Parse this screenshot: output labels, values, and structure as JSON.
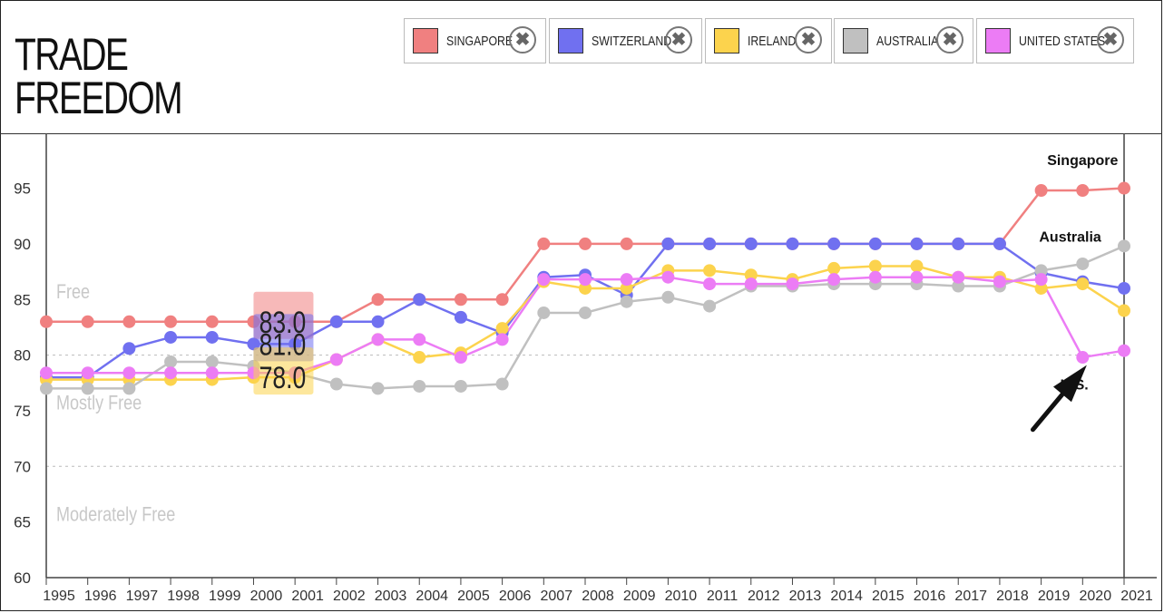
{
  "title_lines": [
    "TRADE",
    "FREEDOM"
  ],
  "legend": [
    {
      "label": "SINGAPORE",
      "color": "#f08080",
      "close_icon": "close-circle-icon"
    },
    {
      "label": "SWITZERLAND",
      "color": "#7070f0",
      "close_icon": "close-circle-icon"
    },
    {
      "label": "IRELAND",
      "color": "#fcd34d",
      "close_icon": "close-circle-icon"
    },
    {
      "label": "AUSTRALIA",
      "color": "#c0c0c0",
      "close_icon": "close-circle-icon"
    },
    {
      "label": "UNITED STATES",
      "color": "#ec7cf5",
      "close_icon": "close-circle-icon"
    }
  ],
  "close_glyph": "✖",
  "chart_data": {
    "type": "line",
    "x": [
      1995,
      1996,
      1997,
      1998,
      1999,
      2000,
      2001,
      2002,
      2003,
      2004,
      2005,
      2006,
      2007,
      2008,
      2009,
      2010,
      2011,
      2012,
      2013,
      2014,
      2015,
      2016,
      2017,
      2018,
      2019,
      2020,
      2021
    ],
    "ylim": [
      60,
      99
    ],
    "yticks": [
      60,
      65,
      70,
      75,
      80,
      85,
      90,
      95
    ],
    "grid": "dashed lines at 70 and 80",
    "bands": [
      {
        "label": "Free",
        "at": 85.1
      },
      {
        "label": "Mostly Free",
        "at": 75.1
      },
      {
        "label": "Moderately Free",
        "at": 65.1
      }
    ],
    "series": [
      {
        "name": "SINGAPORE",
        "color": "#f08080",
        "values": [
          83,
          83,
          83,
          83,
          83,
          83,
          83,
          83,
          85,
          85,
          85,
          85,
          90,
          90,
          90,
          90,
          90,
          90,
          90,
          90,
          90,
          90,
          90,
          90,
          94.8,
          94.8,
          95
        ]
      },
      {
        "name": "SWITZERLAND",
        "color": "#7070f0",
        "values": [
          78,
          78,
          80.6,
          81.6,
          81.6,
          81,
          81,
          83,
          83,
          85,
          83.4,
          82,
          87,
          87.2,
          85.4,
          90,
          90,
          90,
          90,
          90,
          90,
          90,
          90,
          90,
          87.4,
          86.6,
          86
        ]
      },
      {
        "name": "IRELAND",
        "color": "#fcd34d",
        "values": [
          77.8,
          77.8,
          77.8,
          77.8,
          77.8,
          78,
          78,
          79.6,
          81.4,
          79.8,
          80.2,
          82.4,
          86.6,
          86,
          86,
          87.6,
          87.6,
          87.2,
          86.8,
          87.8,
          88,
          88,
          87,
          87,
          86,
          86.4,
          84
        ]
      },
      {
        "name": "AUSTRALIA",
        "color": "#c0c0c0",
        "values": [
          77,
          77,
          77,
          79.4,
          79.4,
          79,
          78.4,
          77.4,
          77,
          77.2,
          77.2,
          77.4,
          83.8,
          83.8,
          84.8,
          85.2,
          84.4,
          86.2,
          86.2,
          86.4,
          86.4,
          86.4,
          86.2,
          86.2,
          87.6,
          88.2,
          89.8
        ]
      },
      {
        "name": "UNITED STATES",
        "color": "#ec7cf5",
        "values": [
          78.4,
          78.4,
          78.4,
          78.4,
          78.4,
          78.4,
          78.4,
          79.6,
          81.4,
          81.4,
          79.8,
          81.4,
          86.8,
          86.8,
          86.8,
          87,
          86.4,
          86.4,
          86.4,
          86.8,
          87,
          87,
          87,
          86.6,
          86.8,
          79.8,
          80.4
        ]
      }
    ],
    "tooltip": {
      "x": 2000,
      "values": [
        "83.0",
        "81.0",
        "78.0"
      ]
    },
    "annotations": [
      {
        "text": "Singapore",
        "x": 2020,
        "y": 97.1
      },
      {
        "text": "Australia",
        "x": 2019.7,
        "y": 90.2
      },
      {
        "text": "U.S.",
        "x": 2019.8,
        "y": 76.9
      }
    ],
    "arrow": {
      "from": [
        2018.8,
        73.3
      ],
      "to": [
        2020.1,
        79.1
      ]
    }
  }
}
